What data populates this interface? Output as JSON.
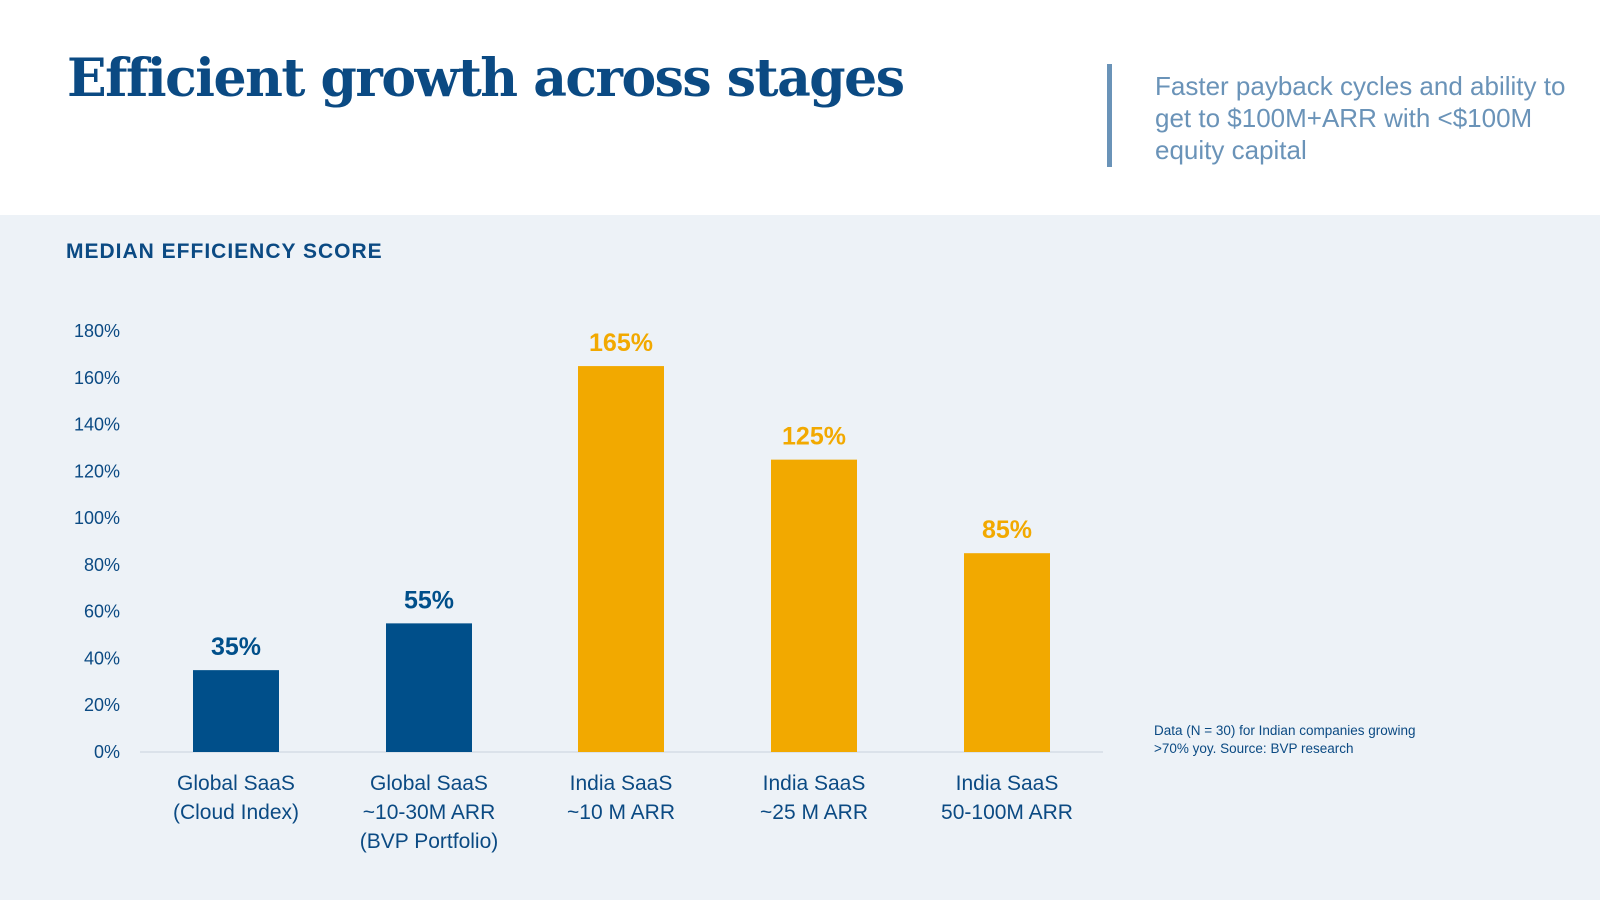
{
  "header": {
    "title": "Efficient growth across stages",
    "subtitle": "Faster payback cycles and ability to get to $100M+ARR with <$100M equity capital"
  },
  "note": "Data (N = 30) for Indian companies growing >70% yoy. Source: BVP research",
  "colors": {
    "global": "#004f8a",
    "india": "#f2a900",
    "title": "#0b4a83"
  },
  "chart_data": {
    "type": "bar",
    "title": "MEDIAN EFFICIENCY SCORE",
    "categories": [
      [
        "Global SaaS",
        "(Cloud Index)"
      ],
      [
        "Global SaaS",
        "~10-30M ARR",
        "(BVP Portfolio)"
      ],
      [
        "India SaaS",
        "~10 M ARR"
      ],
      [
        "India SaaS",
        "~25 M ARR"
      ],
      [
        "India SaaS",
        "50-100M ARR"
      ]
    ],
    "values": [
      35,
      55,
      165,
      125,
      85
    ],
    "data_labels": [
      "35%",
      "55%",
      "165%",
      "125%",
      "85%"
    ],
    "groups": [
      "global",
      "global",
      "india",
      "india",
      "india"
    ],
    "ylim": [
      0,
      180
    ],
    "yticks": [
      "0%",
      "20%",
      "40%",
      "60%",
      "80%",
      "100%",
      "120%",
      "140%",
      "160%",
      "180%"
    ],
    "grid": false,
    "legend": "none"
  }
}
